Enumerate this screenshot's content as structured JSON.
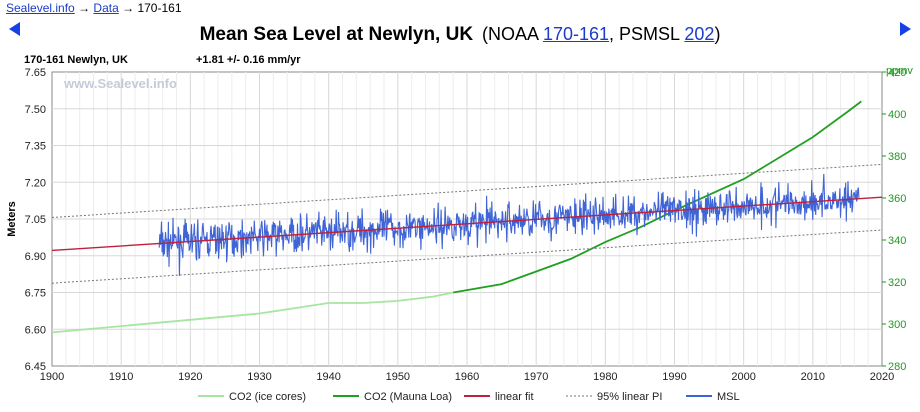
{
  "breadcrumb": {
    "home": "Sealevel.info",
    "arrow1": "→",
    "data": "Data",
    "arrow2": "→",
    "current": "170-161"
  },
  "title": {
    "main": "Mean Sea Level at Newlyn, UK",
    "open": "(NOAA ",
    "noaa_id": "170-161",
    "mid": ", PSMSL ",
    "psmsl_id": "202",
    "close": ")"
  },
  "station_label": "170-161 Newlyn, UK",
  "trend_label": "+1.81 +/- 0.16 mm/yr",
  "watermark": "www.Sealevel.info",
  "colors": {
    "msl": "#3f64d6",
    "linear_fit": "#c0203a",
    "pi": "#777777",
    "co2_ice": "#a6e6a0",
    "co2_mlo": "#20a020",
    "right_axis": "#1e9a1e",
    "grid": "#d8d8d8"
  },
  "chart_data": {
    "type": "line",
    "xlim": [
      1900,
      2020
    ],
    "ylim": [
      6.45,
      7.65
    ],
    "y2lim": [
      280,
      420
    ],
    "ylabel": "Meters",
    "y2label": "ppmv",
    "x_ticks": [
      "1900",
      "1910",
      "1920",
      "1930",
      "1940",
      "1950",
      "1960",
      "1970",
      "1980",
      "1990",
      "2000",
      "2010",
      "2020"
    ],
    "y_ticks": [
      "6.45",
      "6.60",
      "6.75",
      "6.90",
      "7.05",
      "7.20",
      "7.35",
      "7.50",
      "7.65"
    ],
    "y2_ticks": [
      "280",
      "300",
      "320",
      "340",
      "360",
      "380",
      "400",
      "420"
    ],
    "grid": true,
    "legend_position": "bottom",
    "legend": [
      "CO2 (ice cores)",
      "CO2 (Mauna Loa)",
      "linear fit",
      "95% linear PI",
      "MSL"
    ],
    "series": [
      {
        "name": "CO2 (ice cores)",
        "axis": "right",
        "x": [
          1900,
          1910,
          1920,
          1930,
          1940,
          1945,
          1950,
          1955,
          1958
        ],
        "y": [
          296,
          299,
          302,
          305,
          310,
          310,
          311,
          313,
          315
        ]
      },
      {
        "name": "CO2 (Mauna Loa)",
        "axis": "right",
        "x": [
          1958,
          1965,
          1970,
          1975,
          1980,
          1985,
          1990,
          2000,
          2005,
          2010,
          2015,
          2017
        ],
        "y": [
          315,
          319,
          325,
          331,
          339,
          346,
          354,
          369,
          379,
          389,
          401,
          406
        ]
      },
      {
        "name": "linear fit",
        "axis": "left",
        "x": [
          1900,
          2020
        ],
        "y": [
          6.922,
          7.139
        ]
      },
      {
        "name": "95% linear PI upper",
        "axis": "left",
        "x": [
          1900,
          2020
        ],
        "y": [
          7.056,
          7.273
        ]
      },
      {
        "name": "95% linear PI lower",
        "axis": "left",
        "x": [
          1900,
          2020
        ],
        "y": [
          6.788,
          7.005
        ]
      },
      {
        "name": "MSL",
        "axis": "left",
        "x_start": 1915.5,
        "x_end": 2016.7,
        "seed": 7,
        "noise_sd": 0.072
      }
    ]
  }
}
